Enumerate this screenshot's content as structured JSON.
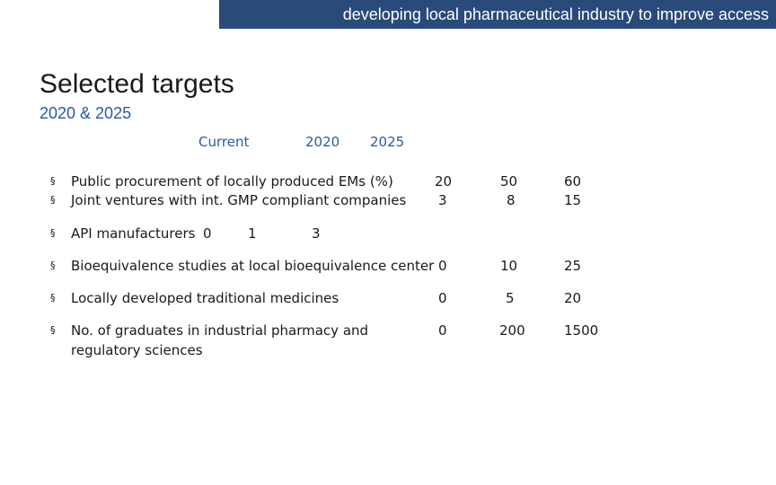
{
  "banner": "developing local pharmaceutical industry to improve access",
  "title": "Selected targets",
  "subtitle": "2020 & 2025",
  "columns": [
    "Current",
    "2020",
    "2025"
  ],
  "bullet_glyph": "§",
  "rows": [
    {
      "label": "Public procurement of locally produced EMs  (%)",
      "current": "20",
      "y2020": "50",
      "y2025": "60"
    },
    {
      "label": "Joint ventures with int. GMP compliant companies",
      "current": "3",
      "y2020": "8",
      "y2025": "15"
    },
    {
      "label": "API manufacturers",
      "current": "0",
      "y2020": "1",
      "y2025": "3"
    },
    {
      "label": "Bioequivalence studies at local bioequivalence center",
      "current": "0",
      "y2020": "10",
      "y2025": "25"
    },
    {
      "label": "Locally developed traditional medicines",
      "current": "0",
      "y2020": "5",
      "y2025": "20"
    },
    {
      "label_line1": "No. of graduates in industrial pharmacy and",
      "label_line2": "regulatory sciences",
      "current": "0",
      "y2020": "200",
      "y2025": "1500"
    }
  ]
}
